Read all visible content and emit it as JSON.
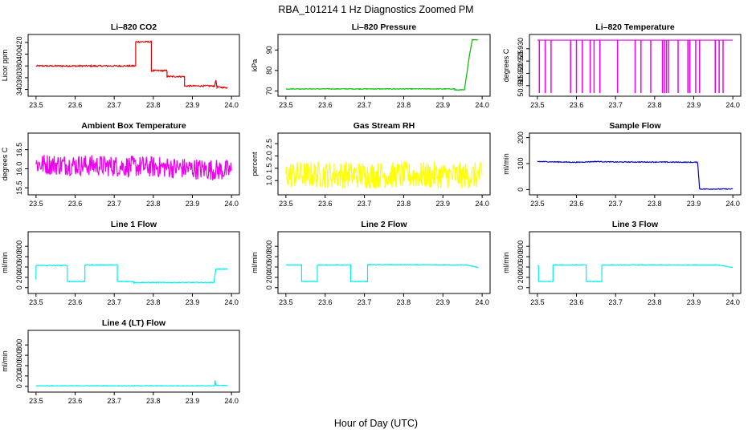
{
  "figure": {
    "title": "RBA_101214  1 Hz Diagnostics Zoomed PM",
    "xlabel": "Hour of Day (UTC)"
  },
  "chart_data": [
    {
      "type": "line",
      "title": "Li–820 CO2",
      "ylabel": "Licor ppm",
      "color": "#dd0000",
      "ylim": [
        334,
        428
      ],
      "yticks": [
        "340",
        "360",
        "380",
        "400",
        "420"
      ],
      "xlim": [
        23.49,
        24.01
      ],
      "xticks": [
        "23.5",
        "23.6",
        "23.7",
        "23.8",
        "23.9",
        "24.0"
      ],
      "x": [
        23.5,
        23.755,
        23.755,
        23.795,
        23.795,
        23.835,
        23.835,
        23.88,
        23.88,
        23.957,
        23.96,
        23.963,
        23.99
      ],
      "y": [
        380,
        380,
        421,
        421,
        372,
        372,
        362,
        362,
        346,
        346,
        356,
        344,
        343
      ],
      "noise": 1.2
    },
    {
      "type": "line",
      "title": "Li–820 Pressure",
      "ylabel": "kPa",
      "color": "#00bb00",
      "ylim": [
        69,
        96
      ],
      "yticks": [
        "70",
        "80",
        "90"
      ],
      "xlim": [
        23.49,
        24.01
      ],
      "xticks": [
        "23.5",
        "23.6",
        "23.7",
        "23.8",
        "23.9",
        "24.0"
      ],
      "x": [
        23.5,
        23.93,
        23.93,
        23.955,
        23.962,
        23.968,
        23.975,
        23.99
      ],
      "y": [
        71,
        71,
        70.5,
        70.5,
        80,
        88,
        95,
        95
      ],
      "noise": 0.15
    },
    {
      "type": "line",
      "title": "Li–820 Temperature",
      "ylabel": "degrees C",
      "color": "#ee00ee",
      "ylim": [
        50.912,
        50.9345
      ],
      "yticks": [
        "50.915",
        "50.920",
        "50.925",
        "50.930"
      ],
      "xlim": [
        23.49,
        24.01
      ],
      "xticks": [
        "23.5",
        "23.6",
        "23.7",
        "23.8",
        "23.9",
        "24.0"
      ],
      "baseline": 50.9335,
      "baseline_x": [
        23.5,
        24.0
      ],
      "spikes": [
        23.505,
        23.52,
        23.535,
        23.585,
        23.6,
        23.615,
        23.635,
        23.645,
        23.66,
        23.705,
        23.75,
        23.765,
        23.79,
        23.82,
        23.825,
        23.83,
        23.835,
        23.86,
        23.885,
        23.89,
        23.905,
        23.915,
        23.955,
        23.965,
        23.975
      ],
      "spike_bottom": 50.912
    },
    {
      "type": "line",
      "title": "Ambient Box Temperature",
      "ylabel": "degrees C",
      "color": "#ee00ee",
      "ylim": [
        15.4,
        16.85
      ],
      "yticks": [
        "15.5",
        "16.0",
        "16.5"
      ],
      "xlim": [
        23.49,
        24.01
      ],
      "xticks": [
        "23.5",
        "23.6",
        "23.7",
        "23.8",
        "23.9",
        "24.0"
      ],
      "x": [
        23.5,
        23.6,
        23.7,
        23.8,
        23.9,
        24.0
      ],
      "y": [
        16.12,
        16.1,
        16.07,
        16.05,
        16.0,
        15.95
      ],
      "noise": 0.28
    },
    {
      "type": "line",
      "title": "Gas Stream RH",
      "ylabel": "percent",
      "color": "#ffff00",
      "ylim": [
        0.55,
        2.8
      ],
      "yticks": [
        "1.0",
        "1.5",
        "2.0",
        "2.5"
      ],
      "xlim": [
        23.49,
        24.01
      ],
      "xticks": [
        "23.5",
        "23.6",
        "23.7",
        "23.8",
        "23.9",
        "24.0"
      ],
      "x": [
        23.5,
        24.0
      ],
      "y": [
        1.25,
        1.2
      ],
      "noise": 0.55
    },
    {
      "type": "line",
      "title": "Sample Flow",
      "ylabel": "ml/min",
      "color": "#0000cc",
      "ylim": [
        -8,
        205
      ],
      "yticks": [
        "0",
        "100",
        "200"
      ],
      "xlim": [
        23.49,
        24.01
      ],
      "xticks": [
        "23.5",
        "23.6",
        "23.7",
        "23.8",
        "23.9",
        "24.0"
      ],
      "x": [
        23.5,
        23.6,
        23.65,
        23.7,
        23.8,
        23.91,
        23.915,
        24.0
      ],
      "y": [
        108,
        105,
        108,
        106,
        106,
        105,
        2,
        2
      ],
      "noise": 1.5
    },
    {
      "type": "line",
      "title": "Line 1 Flow",
      "ylabel": "ml/min",
      "color": "#00eeee",
      "ylim": [
        -50,
        1020
      ],
      "yticks": [
        "0",
        "200",
        "400",
        "600",
        "800"
      ],
      "xlim": [
        23.49,
        24.01
      ],
      "xticks": [
        "23.5",
        "23.6",
        "23.7",
        "23.8",
        "23.9",
        "24.0"
      ],
      "x": [
        23.5,
        23.5,
        23.503,
        23.58,
        23.58,
        23.625,
        23.625,
        23.708,
        23.708,
        23.75,
        23.75,
        23.955,
        23.96,
        23.99
      ],
      "y": [
        150,
        430,
        430,
        430,
        120,
        120,
        440,
        440,
        120,
        120,
        100,
        100,
        360,
        360
      ],
      "noise": 8
    },
    {
      "type": "line",
      "title": "Line 2 Flow",
      "ylabel": "ml/min",
      "color": "#00eeee",
      "ylim": [
        -50,
        1020
      ],
      "yticks": [
        "0",
        "200",
        "400",
        "600",
        "800"
      ],
      "xlim": [
        23.49,
        24.01
      ],
      "xticks": [
        "23.5",
        "23.6",
        "23.7",
        "23.8",
        "23.9",
        "24.0"
      ],
      "x": [
        23.5,
        23.54,
        23.54,
        23.58,
        23.58,
        23.665,
        23.665,
        23.708,
        23.708,
        23.96,
        23.99
      ],
      "y": [
        440,
        440,
        120,
        120,
        440,
        440,
        120,
        120,
        445,
        440,
        390
      ],
      "noise": 6
    },
    {
      "type": "line",
      "title": "Line 3 Flow",
      "ylabel": "ml/min",
      "color": "#00eeee",
      "ylim": [
        -50,
        1020
      ],
      "yticks": [
        "0",
        "200",
        "400",
        "600",
        "800"
      ],
      "xlim": [
        23.49,
        24.01
      ],
      "xticks": [
        "23.5",
        "23.6",
        "23.7",
        "23.8",
        "23.9",
        "24.0"
      ],
      "x": [
        23.5,
        23.503,
        23.503,
        23.54,
        23.54,
        23.625,
        23.625,
        23.665,
        23.665,
        23.96,
        24.0
      ],
      "y": [
        430,
        430,
        120,
        120,
        440,
        440,
        120,
        120,
        440,
        440,
        390
      ],
      "noise": 6
    },
    {
      "type": "line",
      "title": "Line 4 (LT) Flow",
      "ylabel": "ml/min",
      "color": "#00eeee",
      "ylim": [
        -50,
        1020
      ],
      "yticks": [
        "0",
        "200",
        "400",
        "600",
        "800"
      ],
      "xlim": [
        23.49,
        24.01
      ],
      "xticks": [
        "23.5",
        "23.6",
        "23.7",
        "23.8",
        "23.9",
        "24.0"
      ],
      "x": [
        23.5,
        23.957,
        23.958,
        23.96,
        23.99
      ],
      "y": [
        10,
        10,
        110,
        20,
        15
      ],
      "noise": 5
    }
  ]
}
